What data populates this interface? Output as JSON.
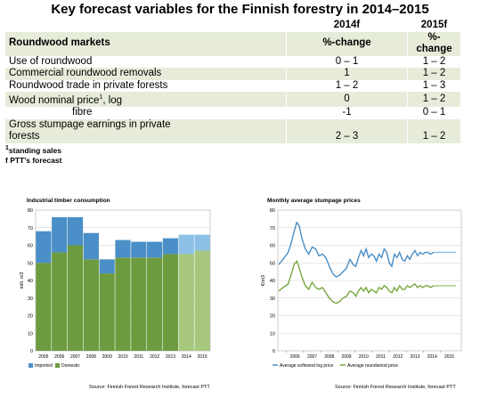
{
  "title": "Key forecast variables for the Finnish forestry in 2014–2015",
  "table": {
    "header1": [
      "",
      "2014f",
      "2015f"
    ],
    "header2": [
      "Roundwood markets",
      "%-change",
      "%-change"
    ],
    "rows": [
      {
        "label": "Use of roundwood",
        "v2014": "0 – 1",
        "v2015": "1 – 2"
      },
      {
        "label": "Commercial roundwood removals",
        "v2014": "1",
        "v2015": "1 – 2"
      },
      {
        "label": "Roundwood trade in private forests",
        "v2014": "1 – 2",
        "v2015": "1 – 3"
      },
      {
        "label": "Wood nominal price",
        "label_sup": "1",
        "label_suffix": ", log",
        "v2014": "0",
        "v2015": "1 – 2"
      },
      {
        "label": "fibre",
        "v2014": "-1",
        "v2015": "0 – 1"
      },
      {
        "label": "Gross stumpage earnings in private",
        "label2": "forests",
        "v2014": "2 – 3",
        "v2015": "1 – 2"
      }
    ]
  },
  "notes": {
    "sup": "1",
    "line1": "standing sales",
    "line2": "f PTT's forecast"
  },
  "colors": {
    "imported": "#4a8fc7",
    "domestic": "#6d9b3f",
    "imported_f": "#8cc0e6",
    "domestic_f": "#a6c77d",
    "row_bg": "#e6ecd9",
    "softwood": "#4a8fc7",
    "roundwood": "#78a83f"
  },
  "chart_data": [
    {
      "type": "bar",
      "title": "Industrial timber consumption",
      "ylabel": "mill. m3",
      "ylim": [
        0,
        80
      ],
      "yticks": [
        0,
        10,
        20,
        30,
        40,
        50,
        60,
        70,
        80
      ],
      "categories": [
        "2005",
        "2006",
        "2007",
        "2008",
        "2009",
        "2010",
        "2011",
        "2012",
        "2013",
        "2014",
        "2015"
      ],
      "series": [
        {
          "name": "Imported",
          "values": [
            18,
            20,
            16,
            15,
            8,
            10,
            9,
            9,
            9,
            11,
            9
          ]
        },
        {
          "name": "Domestic",
          "values": [
            50,
            56,
            60,
            52,
            44,
            53,
            53,
            53,
            55,
            55,
            57
          ]
        }
      ],
      "forecast_from": "2014",
      "legend": [
        "Imported",
        "Domestic"
      ],
      "legend_position": "bottom",
      "source": "Source: Finnish Forest Research Institute, forecast PTT"
    },
    {
      "type": "line",
      "title": "Monthly average stumpage prices",
      "ylabel": "€/m3",
      "ylim": [
        0,
        80
      ],
      "yticks": [
        0,
        10,
        20,
        30,
        40,
        50,
        60,
        70,
        80
      ],
      "xticks": [
        "2006",
        "2007",
        "2008",
        "2009",
        "2010",
        "2011",
        "2012",
        "2013",
        "2014",
        "2015"
      ],
      "x_range": [
        2005.5,
        2016.2
      ],
      "forecast_from": 2014.6,
      "series": [
        {
          "name": "Average softwood log price",
          "x": [
            2005.55,
            2005.8,
            2006.1,
            2006.3,
            2006.45,
            2006.6,
            2006.75,
            2006.9,
            2007.1,
            2007.3,
            2007.5,
            2007.7,
            2007.9,
            2008.1,
            2008.3,
            2008.5,
            2008.7,
            2008.9,
            2009.1,
            2009.3,
            2009.5,
            2009.7,
            2009.9,
            2010.05,
            2010.2,
            2010.35,
            2010.5,
            2010.65,
            2010.8,
            2010.95,
            2011.1,
            2011.25,
            2011.4,
            2011.55,
            2011.7,
            2011.85,
            2012.0,
            2012.15,
            2012.3,
            2012.45,
            2012.6,
            2012.75,
            2012.9,
            2013.05,
            2013.2,
            2013.35,
            2013.5,
            2013.65,
            2013.8,
            2013.95,
            2014.1,
            2014.25,
            2014.4,
            2014.6,
            2014.9,
            2015.2,
            2015.5,
            2015.9
          ],
          "y": [
            49,
            52,
            56,
            62,
            68,
            73,
            71,
            64,
            58,
            55,
            59,
            58,
            54,
            55,
            53,
            48,
            44,
            42,
            43,
            45,
            47,
            52,
            49,
            48,
            53,
            57,
            54,
            58,
            53,
            55,
            54,
            51,
            55,
            53,
            58,
            56,
            50,
            48,
            55,
            53,
            56,
            52,
            51,
            54,
            52,
            55,
            57,
            54,
            56,
            55,
            56,
            56,
            55,
            56,
            56,
            56,
            56,
            56
          ]
        },
        {
          "name": "Average roundwood price",
          "x": [
            2005.55,
            2005.8,
            2006.1,
            2006.3,
            2006.45,
            2006.6,
            2006.75,
            2006.9,
            2007.1,
            2007.3,
            2007.5,
            2007.7,
            2007.9,
            2008.1,
            2008.3,
            2008.5,
            2008.7,
            2008.9,
            2009.1,
            2009.3,
            2009.5,
            2009.7,
            2009.9,
            2010.05,
            2010.2,
            2010.35,
            2010.5,
            2010.65,
            2010.8,
            2010.95,
            2011.1,
            2011.25,
            2011.4,
            2011.55,
            2011.7,
            2011.85,
            2012.0,
            2012.15,
            2012.3,
            2012.45,
            2012.6,
            2012.75,
            2012.9,
            2013.05,
            2013.2,
            2013.35,
            2013.5,
            2013.65,
            2013.8,
            2013.95,
            2014.1,
            2014.25,
            2014.4,
            2014.6,
            2014.9,
            2015.2,
            2015.5,
            2015.9
          ],
          "y": [
            34,
            36,
            38,
            44,
            49,
            51,
            47,
            42,
            37,
            35,
            39,
            36,
            35,
            36,
            33,
            30,
            28,
            27,
            28,
            30,
            31,
            34,
            33,
            31,
            34,
            36,
            34,
            36,
            33,
            35,
            34,
            33,
            36,
            35,
            37,
            36,
            34,
            33,
            36,
            34,
            37,
            35,
            35,
            37,
            36,
            37,
            38,
            36,
            37,
            36,
            37,
            37,
            36,
            37,
            37,
            37,
            37,
            37
          ]
        }
      ],
      "legend": [
        "Average softwood log price",
        "Average roundwood price"
      ],
      "legend_position": "bottom",
      "source": "Source: Finnish Forest Research Institute, forecast PTT"
    }
  ]
}
